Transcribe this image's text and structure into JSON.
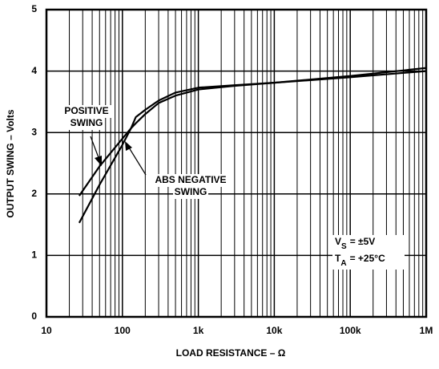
{
  "chart_data": {
    "type": "line",
    "xlabel": "LOAD RESISTANCE – Ω",
    "ylabel": "OUTPUT SWING – Volts",
    "xlog": true,
    "xlim": [
      10,
      1000000
    ],
    "xticks": [
      10,
      100,
      {
        "value": 1000,
        "label": "1k"
      },
      {
        "value": 10000,
        "label": "10k"
      },
      {
        "value": 100000,
        "label": "100k"
      },
      {
        "value": 1000000,
        "label": "1M"
      }
    ],
    "ylim": [
      0,
      5
    ],
    "yticks": [
      0,
      1,
      2,
      3,
      4,
      5
    ],
    "grid": true,
    "x": [
      27,
      50,
      100,
      130,
      150,
      200,
      300,
      500,
      1000,
      3000,
      10000,
      100000,
      1000000
    ],
    "series": [
      {
        "name": "POSITIVE SWING",
        "color": "#000000",
        "values": [
          1.97,
          2.45,
          2.9,
          3.07,
          3.15,
          3.3,
          3.48,
          3.6,
          3.7,
          3.76,
          3.81,
          3.9,
          4.0
        ]
      },
      {
        "name": "ABS NEGATIVE SWING",
        "color": "#000000",
        "values": [
          1.53,
          2.15,
          2.8,
          3.07,
          3.25,
          3.37,
          3.52,
          3.65,
          3.73,
          3.77,
          3.81,
          3.92,
          4.05
        ]
      }
    ],
    "annotations": [
      {
        "lines": [
          "POSITIVE",
          "SWING"
        ]
      },
      {
        "lines": [
          "ABS NEGATIVE",
          "SWING"
        ]
      }
    ],
    "conditions": [
      {
        "text": "V",
        "sub": "S",
        "rest": "= ±5V"
      },
      {
        "text": "T",
        "sub": "A",
        "rest": "= +25°C"
      }
    ]
  }
}
